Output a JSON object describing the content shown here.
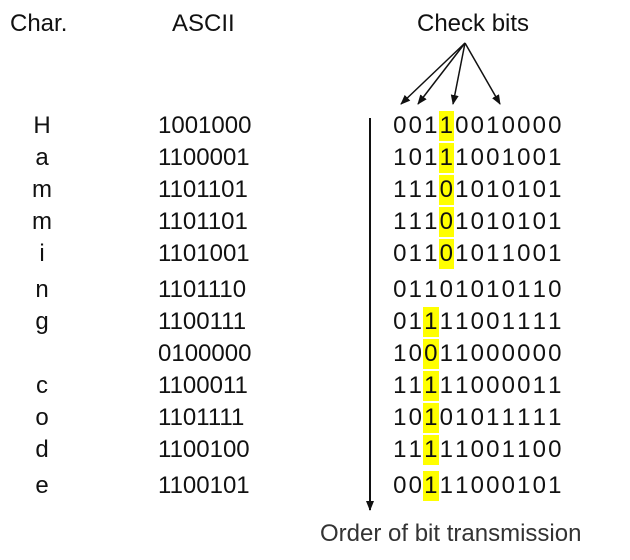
{
  "headers": {
    "char": "Char.",
    "ascii": "ASCII",
    "check_bits": "Check bits"
  },
  "rows": [
    {
      "char": "H",
      "ascii": "1001000",
      "code": "00110010000",
      "highlight": 3
    },
    {
      "char": "a",
      "ascii": "1100001",
      "code": "10111001001",
      "highlight": 3
    },
    {
      "char": "m",
      "ascii": "1101101",
      "code": "11101010101",
      "highlight": 3
    },
    {
      "char": "m",
      "ascii": "1101101",
      "code": "11101010101",
      "highlight": 3
    },
    {
      "char": "i",
      "ascii": "1101001",
      "code": "01101011001",
      "highlight": 3
    },
    {
      "char": "n",
      "ascii": "1101110",
      "code": "01101010110",
      "highlight": null
    },
    {
      "char": "g",
      "ascii": "1100111",
      "code": "01111001111",
      "highlight": 2
    },
    {
      "char": "",
      "ascii": "0100000",
      "code": "10011000000",
      "highlight": 2
    },
    {
      "char": "c",
      "ascii": "1100011",
      "code": "11111000011",
      "highlight": 2
    },
    {
      "char": "o",
      "ascii": "1101111",
      "code": "10101011111",
      "highlight": 2
    },
    {
      "char": "d",
      "ascii": "1100100",
      "code": "11111001100",
      "highlight": 2
    },
    {
      "char": "e",
      "ascii": "1100101",
      "code": "00111000101",
      "highlight": 2
    }
  ],
  "transmission_label": "Order of bit transmission",
  "colors": {
    "highlight": "#ffff00",
    "text": "#111111"
  }
}
